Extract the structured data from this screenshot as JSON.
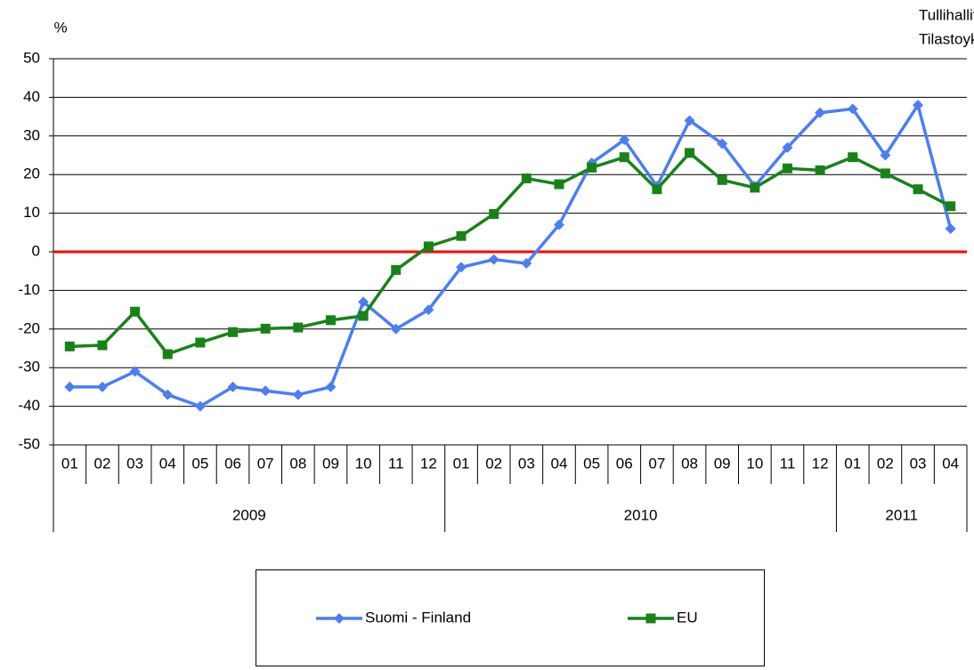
{
  "chart_data": {
    "type": "line",
    "source": [
      "Tullihallitus",
      "Tilastoyksikkö"
    ],
    "y_label": "%",
    "groups": [
      {
        "name": "2009",
        "categories": [
          "01",
          "02",
          "03",
          "04",
          "05",
          "06",
          "07",
          "08",
          "09",
          "10",
          "11",
          "12"
        ]
      },
      {
        "name": "2010",
        "categories": [
          "01",
          "02",
          "03",
          "04",
          "05",
          "06",
          "07",
          "08",
          "09",
          "10",
          "11",
          "12"
        ]
      },
      {
        "name": "2011",
        "categories": [
          "01",
          "02",
          "03",
          "04"
        ]
      }
    ],
    "series": [
      {
        "name": "Suomi - Finland",
        "color": "#4a7ef5",
        "marker": "diamond",
        "values": [
          -35,
          -35,
          -31,
          -37,
          -40,
          -35,
          -36,
          -37,
          -35,
          -13,
          -20,
          -15,
          -4,
          -2,
          -3,
          7,
          23,
          29,
          17,
          34,
          28,
          17,
          27,
          36,
          37,
          25,
          38,
          6
        ]
      },
      {
        "name": "EU",
        "color": "#178317",
        "marker": "square",
        "values": [
          -24.5,
          -24.2,
          -15.5,
          -26.5,
          -23.5,
          -20.8,
          -19.9,
          -19.6,
          -17.7,
          -16.6,
          -4.7,
          1.4,
          4.1,
          9.8,
          19,
          17.5,
          21.8,
          24.5,
          16.2,
          25.6,
          18.6,
          16.6,
          21.6,
          21.1,
          24.5,
          20.3,
          16.2,
          11.8
        ]
      }
    ],
    "reference_line": {
      "value": 0,
      "color": "#ff0000"
    },
    "ylim": [
      -50,
      50
    ],
    "yticks": [
      -50,
      -40,
      -30,
      -20,
      -10,
      0,
      10,
      20,
      30,
      40,
      50
    ],
    "grid": true,
    "legend": "bottom"
  }
}
